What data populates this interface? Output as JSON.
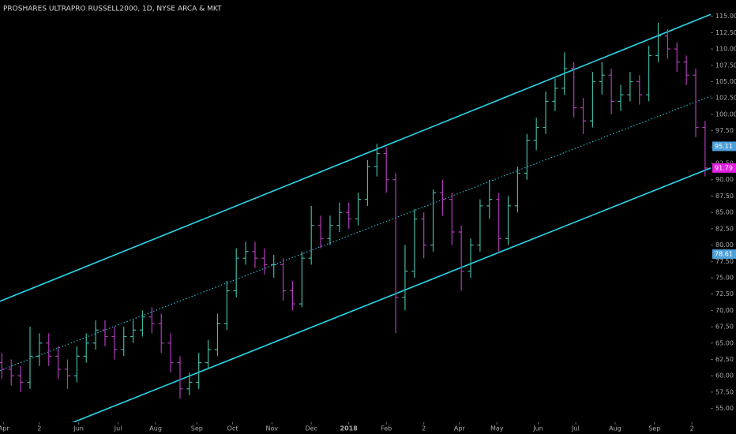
{
  "chart_data": {
    "type": "ohlc",
    "title": "PROSHARES ULTRAPRO RUSSELL2000, 1D, NYSE ARCA & MKT",
    "x": [
      0,
      5,
      10,
      15,
      20,
      25,
      30,
      35,
      40,
      45,
      50,
      55,
      60,
      65,
      70,
      75,
      80,
      85,
      90,
      95,
      100,
      105,
      110,
      115,
      120,
      125,
      130,
      135,
      140,
      145,
      150,
      155,
      160,
      165,
      170,
      175,
      180,
      185,
      190,
      195,
      200,
      205,
      210,
      215,
      220,
      225,
      230,
      235,
      240,
      245,
      250,
      255,
      260,
      265,
      270,
      275,
      280,
      285,
      290,
      295,
      300,
      305,
      310,
      315,
      320,
      325,
      330,
      335,
      340,
      345,
      350,
      355,
      360,
      365,
      370,
      375
    ],
    "open": [
      62,
      61,
      60,
      59,
      63,
      65,
      63,
      61,
      60,
      63,
      65,
      67,
      66,
      64,
      66,
      67,
      69,
      68,
      65,
      62,
      58,
      59,
      62,
      64,
      68,
      73,
      78,
      79,
      78,
      77,
      77,
      73,
      71,
      78,
      83,
      81,
      83,
      85,
      84,
      87,
      92,
      94,
      90,
      72,
      76,
      84,
      80,
      88,
      87,
      82,
      76,
      80,
      86,
      87,
      81,
      86,
      91,
      96,
      98,
      102,
      104,
      107,
      101,
      99,
      105,
      106,
      102,
      103,
      105,
      103,
      109,
      112,
      110,
      108,
      106,
      98
    ],
    "high": [
      63.5,
      62.5,
      61.5,
      67.5,
      66.5,
      66.5,
      64.5,
      62.5,
      64.5,
      66.5,
      68.5,
      68.5,
      67.5,
      67.5,
      68.5,
      70,
      70.5,
      69.5,
      66.5,
      63,
      60.5,
      63.5,
      65.5,
      69.5,
      74.5,
      79.5,
      80.5,
      80.5,
      79.5,
      78.5,
      78,
      74.5,
      79,
      86,
      84.5,
      84.5,
      86.5,
      86.5,
      88,
      93,
      95.5,
      95,
      91,
      80,
      85.5,
      85,
      88.5,
      90,
      88,
      83,
      81,
      87,
      90,
      88,
      87.5,
      92,
      97,
      99.5,
      103.5,
      105.5,
      109.5,
      108,
      102.5,
      106.5,
      108,
      107,
      104.5,
      106.5,
      106,
      110.5,
      114,
      113,
      111,
      109,
      107,
      99
    ],
    "low": [
      59.5,
      58.5,
      57.5,
      58,
      61.5,
      61.5,
      59.5,
      58,
      59,
      62,
      64,
      64.5,
      62.5,
      63,
      65,
      66,
      66.5,
      63.5,
      60.5,
      56.5,
      57,
      58,
      61,
      63,
      67,
      72,
      77,
      76.5,
      75.5,
      75,
      71.5,
      70,
      70.5,
      77,
      79.5,
      80,
      82,
      82.5,
      83,
      86,
      90.5,
      88,
      66.5,
      70,
      75,
      78,
      79,
      84.5,
      80,
      73,
      75,
      79,
      84,
      79,
      80,
      85,
      90,
      94.5,
      97,
      100.5,
      103,
      99.5,
      97,
      98,
      103,
      100,
      100.5,
      102,
      101.5,
      102,
      108,
      108.5,
      106.5,
      104.5,
      96.5,
      90.5
    ],
    "close": [
      61,
      60,
      59,
      63,
      65,
      63,
      61,
      60,
      63,
      65,
      67,
      66,
      64,
      66,
      67,
      69,
      68,
      65,
      62,
      58,
      59,
      62,
      64,
      68,
      73,
      78,
      79,
      78,
      77,
      77,
      73,
      71,
      78,
      83,
      81,
      83,
      85,
      84,
      87,
      92,
      94,
      90,
      72,
      76,
      84,
      80,
      88,
      87,
      82,
      76,
      80,
      86,
      87,
      81,
      86,
      91,
      96,
      98,
      102,
      104,
      107,
      101,
      99,
      105,
      106,
      102,
      103,
      105,
      103,
      109,
      112,
      110,
      108,
      106,
      98,
      91.79
    ],
    "up_color": "#3fb8a6",
    "down_color": "#b03db8",
    "channel": [
      {
        "x": [
          -1,
          378
        ],
        "values": [
          71.4,
          115.3
        ],
        "color": "#2ad6ea"
      },
      {
        "x": [
          -1,
          378
        ],
        "values": [
          60.8,
          102.8
        ],
        "color": "#2ad6ea",
        "style": "dotted"
      },
      {
        "x": [
          -1,
          378
        ],
        "values": [
          48.4,
          91.8
        ],
        "color": "#2ad6ea"
      }
    ],
    "price_labels": [
      {
        "value": 95.11,
        "color": "#4f9fd8"
      },
      {
        "value": 91.79,
        "color": "#e020e0"
      },
      {
        "value": 78.61,
        "color": "#4f9fd8"
      }
    ],
    "xlim": [
      -1,
      378
    ],
    "ylim": [
      52.9,
      117.5
    ],
    "xticks": [
      {
        "value": 1,
        "label": "Apr"
      },
      {
        "value": 20,
        "label": "2"
      },
      {
        "value": 41,
        "label": "Jun"
      },
      {
        "value": 62,
        "label": "Jul"
      },
      {
        "value": 82,
        "label": "Aug"
      },
      {
        "value": 104,
        "label": "Sep"
      },
      {
        "value": 123,
        "label": "Oct"
      },
      {
        "value": 144,
        "label": "Nov"
      },
      {
        "value": 165,
        "label": "Dec"
      },
      {
        "value": 185,
        "label": "2018"
      },
      {
        "value": 205,
        "label": "Feb"
      },
      {
        "value": 225,
        "label": "2"
      },
      {
        "value": 244,
        "label": "Apr"
      },
      {
        "value": 264,
        "label": "May"
      },
      {
        "value": 286,
        "label": "Jun"
      },
      {
        "value": 306,
        "label": "Jul"
      },
      {
        "value": 327,
        "label": "Aug"
      },
      {
        "value": 348,
        "label": "Sep"
      },
      {
        "value": 368,
        "label": "2"
      }
    ],
    "yticks": [
      {
        "value": 55,
        "label": "55.00"
      },
      {
        "value": 57.5,
        "label": "57.50"
      },
      {
        "value": 60,
        "label": "60.00"
      },
      {
        "value": 62.5,
        "label": "62.50"
      },
      {
        "value": 65,
        "label": "65.00"
      },
      {
        "value": 67.5,
        "label": "67.50"
      },
      {
        "value": 70,
        "label": "70.00"
      },
      {
        "value": 72.5,
        "label": "72.50"
      },
      {
        "value": 75,
        "label": "75.00"
      },
      {
        "value": 77.5,
        "label": "77.50"
      },
      {
        "value": 80,
        "label": "80.00"
      },
      {
        "value": 82.5,
        "label": "82.50"
      },
      {
        "value": 85,
        "label": "85.00"
      },
      {
        "value": 87.5,
        "label": "87.50"
      },
      {
        "value": 90,
        "label": "90.00"
      },
      {
        "value": 92.5,
        "label": "92.50"
      },
      {
        "value": 95,
        "label": "95.00"
      },
      {
        "value": 97.5,
        "label": "97.50"
      },
      {
        "value": 100,
        "label": "100.00"
      },
      {
        "value": 102.5,
        "label": "102.50"
      },
      {
        "value": 105,
        "label": "105.00"
      },
      {
        "value": 107.5,
        "label": "107.50"
      },
      {
        "value": 110,
        "label": "110.00"
      },
      {
        "value": 112.5,
        "label": "112.50"
      },
      {
        "value": 115,
        "label": "115.00"
      }
    ],
    "grid": false
  }
}
